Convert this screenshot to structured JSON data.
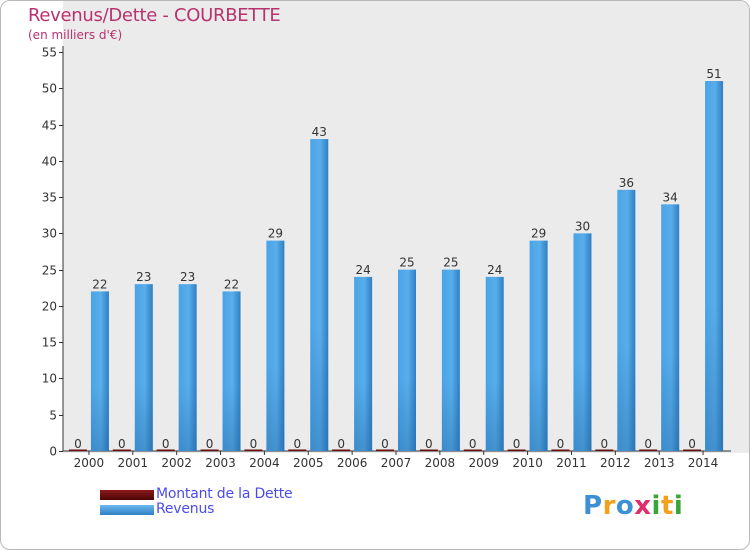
{
  "chart_data": {
    "type": "bar",
    "title": "Revenus/Dette - COURBETTE",
    "subtitle": "(en milliers d'€)",
    "categories": [
      "2000",
      "2001",
      "2002",
      "2003",
      "2004",
      "2005",
      "2006",
      "2007",
      "2008",
      "2009",
      "2010",
      "2011",
      "2012",
      "2013",
      "2014"
    ],
    "series": [
      {
        "name": "Montant de la Dette",
        "color": "#6b0d0d",
        "values": [
          0,
          0,
          0,
          0,
          0,
          0,
          0,
          0,
          0,
          0,
          0,
          0,
          0,
          0,
          0
        ]
      },
      {
        "name": "Revenus",
        "color": "#3d95d8",
        "values": [
          22,
          23,
          23,
          22,
          29,
          43,
          24,
          25,
          25,
          24,
          29,
          30,
          36,
          34,
          51
        ]
      }
    ],
    "ylim": [
      0,
      55
    ],
    "yticks": [
      0,
      5,
      10,
      15,
      20,
      25,
      30,
      35,
      40,
      45,
      50,
      55
    ],
    "grid": false,
    "legend": "bottom-left"
  },
  "logo": {
    "letters": [
      "P",
      "r",
      "o",
      "x",
      "i",
      "t",
      "i"
    ],
    "colors": [
      "#3d8fd6",
      "#f0a21c",
      "#3d8fd6",
      "#e02e6b",
      "#3aa63a",
      "#f0a21c",
      "#3aa63a"
    ]
  }
}
